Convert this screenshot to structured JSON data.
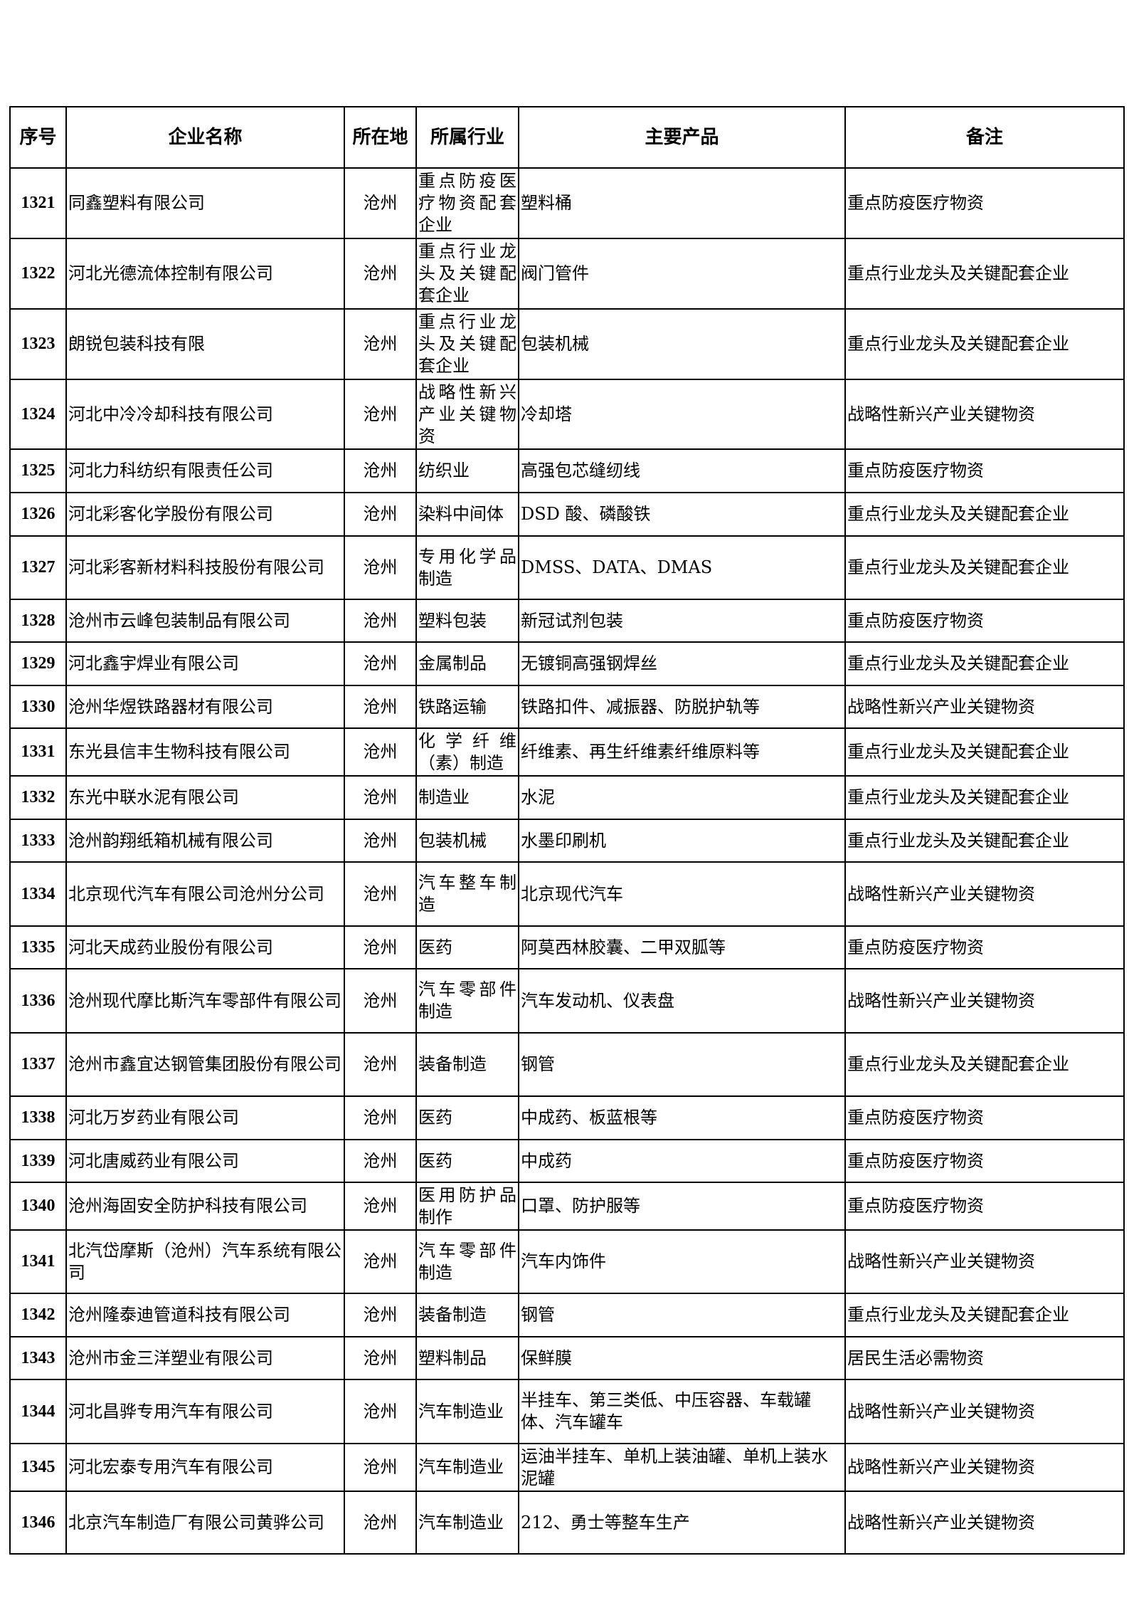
{
  "table": {
    "headers": [
      "序号",
      "企业名称",
      "所在地",
      "所属行业",
      "主要产品",
      "备注"
    ],
    "rows": [
      [
        "1321",
        "同鑫塑料有限公司",
        "沧州",
        "重点防疫医疗物资配套企业",
        "塑料桶",
        "重点防疫医疗物资"
      ],
      [
        "1322",
        "河北光德流体控制有限公司",
        "沧州",
        "重点行业龙头及关键配套企业",
        "阀门管件",
        "重点行业龙头及关键配套企业"
      ],
      [
        "1323",
        "朗锐包装科技有限",
        "沧州",
        "重点行业龙头及关键配套企业",
        "包装机械",
        "重点行业龙头及关键配套企业"
      ],
      [
        "1324",
        "河北中冷冷却科技有限公司",
        "沧州",
        "战略性新兴产业关键物资",
        "冷却塔",
        "战略性新兴产业关键物资"
      ],
      [
        "1325",
        "河北力科纺织有限责任公司",
        "沧州",
        "纺织业",
        "高强包芯缝纫线",
        "重点防疫医疗物资"
      ],
      [
        "1326",
        "河北彩客化学股份有限公司",
        "沧州",
        "染料中间体",
        "DSD 酸、磷酸铁",
        "重点行业龙头及关键配套企业"
      ],
      [
        "1327",
        "河北彩客新材料科技股份有限公司",
        "沧州",
        "专用化学品制造",
        "DMSS、DATA、DMAS",
        "重点行业龙头及关键配套企业"
      ],
      [
        "1328",
        "沧州市云峰包装制品有限公司",
        "沧州",
        "塑料包装",
        "新冠试剂包装",
        "重点防疫医疗物资"
      ],
      [
        "1329",
        "河北鑫宇焊业有限公司",
        "沧州",
        "金属制品",
        "无镀铜高强钢焊丝",
        "重点行业龙头及关键配套企业"
      ],
      [
        "1330",
        "沧州华煜铁路器材有限公司",
        "沧州",
        "铁路运输",
        "铁路扣件、减振器、防脱护轨等",
        "战略性新兴产业关键物资"
      ],
      [
        "1331",
        "东光县信丰生物科技有限公司",
        "沧州",
        "化学纤维（素）制造",
        "纤维素、再生纤维素纤维原料等",
        "重点行业龙头及关键配套企业"
      ],
      [
        "1332",
        "东光中联水泥有限公司",
        "沧州",
        "制造业",
        "水泥",
        "重点行业龙头及关键配套企业"
      ],
      [
        "1333",
        "沧州韵翔纸箱机械有限公司",
        "沧州",
        "包装机械",
        "水墨印刷机",
        "重点行业龙头及关键配套企业"
      ],
      [
        "1334",
        "北京现代汽车有限公司沧州分公司",
        "沧州",
        "汽车整车制造",
        "北京现代汽车",
        "战略性新兴产业关键物资"
      ],
      [
        "1335",
        "河北天成药业股份有限公司",
        "沧州",
        "医药",
        "阿莫西林胶囊、二甲双胍等",
        "重点防疫医疗物资"
      ],
      [
        "1336",
        "沧州现代摩比斯汽车零部件有限公司",
        "沧州",
        "汽车零部件制造",
        "汽车发动机、仪表盘",
        "战略性新兴产业关键物资"
      ],
      [
        "1337",
        "沧州市鑫宜达钢管集团股份有限公司",
        "沧州",
        "装备制造",
        "钢管",
        "重点行业龙头及关键配套企业"
      ],
      [
        "1338",
        "河北万岁药业有限公司",
        "沧州",
        "医药",
        "中成药、板蓝根等",
        "重点防疫医疗物资"
      ],
      [
        "1339",
        "河北唐威药业有限公司",
        "沧州",
        "医药",
        "中成药",
        "重点防疫医疗物资"
      ],
      [
        "1340",
        "沧州海固安全防护科技有限公司",
        "沧州",
        "医用防护品制作",
        "口罩、防护服等",
        "重点防疫医疗物资"
      ],
      [
        "1341",
        "北汽岱摩斯（沧州）汽车系统有限公司",
        "沧州",
        "汽车零部件制造",
        "汽车内饰件",
        "战略性新兴产业关键物资"
      ],
      [
        "1342",
        "沧州隆泰迪管道科技有限公司",
        "沧州",
        "装备制造",
        "钢管",
        "重点行业龙头及关键配套企业"
      ],
      [
        "1343",
        "沧州市金三洋塑业有限公司",
        "沧州",
        "塑料制品",
        "保鲜膜",
        "居民生活必需物资"
      ],
      [
        "1344",
        "河北昌骅专用汽车有限公司",
        "沧州",
        "汽车制造业",
        "半挂车、第三类低、中压容器、车载罐体、汽车罐车",
        "战略性新兴产业关键物资"
      ],
      [
        "1345",
        "河北宏泰专用汽车有限公司",
        "沧州",
        "汽车制造业",
        "运油半挂车、单机上装油罐、单机上装水泥罐",
        "战略性新兴产业关键物资"
      ],
      [
        "1346",
        "北京汽车制造厂有限公司黄骅公司",
        "沧州",
        "汽车制造业",
        "212、勇士等整车生产",
        "战略性新兴产业关键物资"
      ]
    ]
  }
}
